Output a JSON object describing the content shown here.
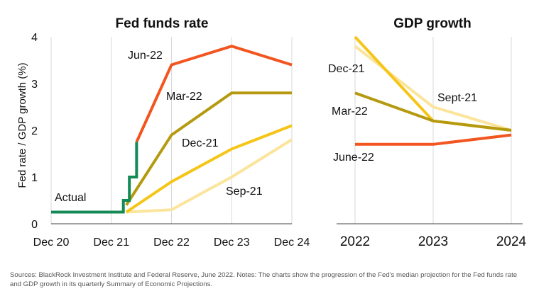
{
  "chart_data": [
    {
      "type": "line",
      "title": "Fed funds rate",
      "ylabel": "Fed rate / GDP growth (%)",
      "ylim": [
        0,
        4
      ],
      "yticks": [
        "0",
        "1",
        "2",
        "3",
        "4"
      ],
      "xticks": [
        "Dec 20",
        "Dec 21",
        "Dec 22",
        "Dec 23",
        "Dec 24"
      ],
      "grid": true,
      "series": [
        {
          "name": "Sep-21",
          "color": "#fbe49b",
          "x": [
            1.25,
            2.0,
            3.0,
            4.0
          ],
          "values": [
            0.25,
            0.3,
            1.0,
            1.8
          ]
        },
        {
          "name": "Dec-21",
          "color": "#f5c518",
          "x": [
            1.25,
            2.0,
            3.0,
            4.0
          ],
          "values": [
            0.25,
            0.9,
            1.6,
            2.1
          ]
        },
        {
          "name": "Mar-22",
          "color": "#b59a10",
          "x": [
            1.25,
            2.0,
            3.0,
            4.0
          ],
          "values": [
            0.4,
            1.9,
            2.8,
            2.8
          ]
        },
        {
          "name": "Jun-22",
          "color": "#f2551f",
          "x": [
            1.42,
            2.0,
            3.0,
            4.0
          ],
          "values": [
            1.75,
            3.4,
            3.8,
            3.4
          ]
        },
        {
          "name": "Actual",
          "color": "#148a57",
          "step": true,
          "x": [
            0.0,
            1.2,
            1.2,
            1.3,
            1.3,
            1.35,
            1.35,
            1.42,
            1.42
          ],
          "values": [
            0.25,
            0.25,
            0.5,
            0.5,
            1.0,
            1.0,
            1.0,
            1.0,
            1.75
          ]
        }
      ],
      "annotations": [
        "Jun-22",
        "Mar-22",
        "Dec-21",
        "Sep-21",
        "Actual"
      ]
    },
    {
      "type": "line",
      "title": "GDP growth",
      "ylim": [
        0,
        4
      ],
      "xticks": [
        "2022",
        "2023",
        "2024"
      ],
      "grid": true,
      "series": [
        {
          "name": "Sept-21",
          "color": "#fbe49b",
          "x": [
            2022,
            2023,
            2024
          ],
          "values": [
            3.8,
            2.5,
            2.0
          ]
        },
        {
          "name": "Dec-21",
          "color": "#f5c518",
          "x": [
            2022,
            2023,
            2024
          ],
          "values": [
            4.0,
            2.2,
            2.0
          ]
        },
        {
          "name": "Mar-22",
          "color": "#b59a10",
          "x": [
            2022,
            2023,
            2024
          ],
          "values": [
            2.8,
            2.2,
            2.0
          ]
        },
        {
          "name": "June-22",
          "color": "#f2551f",
          "x": [
            2022,
            2023,
            2024
          ],
          "values": [
            1.7,
            1.7,
            1.9
          ]
        }
      ],
      "annotations": [
        "Dec-21",
        "Sept-21",
        "Mar-22",
        "June-22"
      ]
    }
  ],
  "footer": {
    "text": "Sources: BlackRock Investment Institute and Federal Reserve, June 2022. Notes: The charts show the progression of the Fed's median projection for the Fed funds rate and GDP growth in its quarterly Summary of Economic Projections."
  }
}
